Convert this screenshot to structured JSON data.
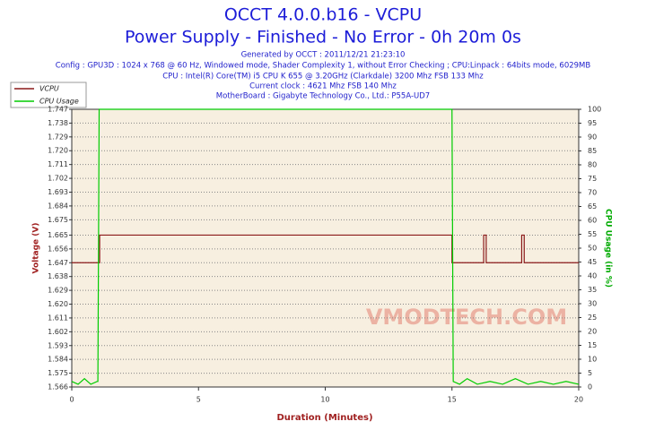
{
  "chart_data": {
    "type": "line",
    "title": "OCCT 4.0.0.b16 - VCPU",
    "subtitle": "Power Supply - Finished - No Error - 0h 20m 0s",
    "info": [
      "Generated by OCCT : 2011/12/21 21:23:10",
      "Config : GPU3D : 1024 x 768 @ 60 Hz, Windowed mode, Shader Complexity 1, without Error Checking ; CPU:Linpack : 64bits mode, 6029MB",
      "CPU : Intel(R) Core(TM) i5 CPU K 655 @ 3.20GHz (Clarkdale) 3200 Mhz FSB 133 Mhz",
      "Current clock : 4621 Mhz FSB 140 Mhz",
      "MotherBoard : Gigabyte Technology Co., Ltd.: P55A-UD7"
    ],
    "watermark": "VMODTECH.COM",
    "xlabel": "Duration (Minutes)",
    "ylabel": "Voltage (V)",
    "y2label": "CPU Usage (in %)",
    "xlim": [
      0,
      20
    ],
    "xticks": [
      0,
      5,
      10,
      15,
      20
    ],
    "ylim": [
      1.566,
      1.747
    ],
    "yticks": [
      1.566,
      1.575,
      1.584,
      1.593,
      1.602,
      1.611,
      {
        "value": 1.62,
        "label": "1.620"
      },
      1.629,
      1.638,
      1.647,
      1.656,
      1.665,
      1.675,
      1.684,
      1.693,
      1.702,
      1.711,
      {
        "value": 1.72,
        "label": "1.720"
      },
      1.729,
      1.738,
      1.747
    ],
    "y2lim": [
      0,
      100
    ],
    "y2ticks": [
      0,
      5,
      10,
      15,
      20,
      25,
      30,
      35,
      40,
      45,
      50,
      55,
      60,
      65,
      70,
      75,
      80,
      85,
      90,
      95,
      100
    ],
    "grid": true,
    "legend": "top-left",
    "series": [
      {
        "name": "VCPU",
        "color": "#8b1a1a",
        "x": [
          0,
          1.1,
          1.1,
          15,
          15,
          16.25,
          16.25,
          16.35,
          16.35,
          17.75,
          17.75,
          17.85,
          17.85,
          20
        ],
        "values": [
          1.647,
          1.647,
          1.665,
          1.665,
          1.647,
          1.647,
          1.665,
          1.665,
          1.647,
          1.647,
          1.665,
          1.665,
          1.647,
          1.647
        ]
      },
      {
        "name": "CPU Usage",
        "color": "#00cc00",
        "axis": "y2",
        "x": [
          0,
          0.25,
          0.5,
          0.75,
          1.0,
          1.03,
          1.08,
          15,
          15.05,
          15.3,
          15.6,
          16,
          16.5,
          17,
          17.5,
          18,
          18.5,
          19,
          19.5,
          20
        ],
        "values": [
          2,
          1,
          3,
          1,
          2,
          2,
          100,
          100,
          2,
          1,
          3,
          1,
          2,
          1,
          3,
          1,
          2,
          1,
          2,
          1
        ]
      }
    ]
  }
}
